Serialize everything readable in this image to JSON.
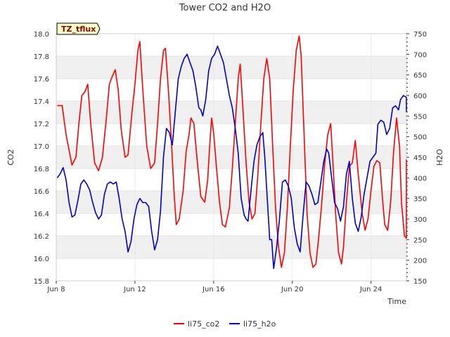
{
  "chart_data": {
    "type": "line",
    "title": "Tower CO2 and H2O",
    "site_tag": "TZ_tflux",
    "xlabel": "Time",
    "ylabel_left": "CO2",
    "ylabel_right": "H2O",
    "x_domain_days": [
      8.0,
      25.8
    ],
    "ylim_left": [
      15.8,
      18.0
    ],
    "ylim_right": [
      150,
      750
    ],
    "x_ticks": [
      {
        "day": 8,
        "label": "Jun 8"
      },
      {
        "day": 12,
        "label": "Jun 12"
      },
      {
        "day": 16,
        "label": "Jun 16"
      },
      {
        "day": 20,
        "label": "Jun 20"
      },
      {
        "day": 24,
        "label": "Jun 24"
      }
    ],
    "y_ticks_left": [
      "15.8",
      "16.0",
      "16.2",
      "16.4",
      "16.6",
      "16.8",
      "17.0",
      "17.2",
      "17.4",
      "17.6",
      "17.8",
      "18.0"
    ],
    "y_ticks_right": [
      "150",
      "200",
      "250",
      "300",
      "350",
      "400",
      "450",
      "500",
      "550",
      "600",
      "650",
      "700",
      "750"
    ],
    "grid": true,
    "legend_position": "bottom-center",
    "colors": {
      "li75_co2": "#ff0000",
      "li75_h2o": "#0000cc",
      "band": "#f0f0f0",
      "tag_bg": "#ffffcc"
    },
    "series": [
      {
        "name": "li75_co2",
        "axis": "left",
        "points": [
          [
            8.05,
            17.36
          ],
          [
            8.3,
            17.36
          ],
          [
            8.5,
            17.1
          ],
          [
            8.8,
            16.83
          ],
          [
            9.0,
            16.9
          ],
          [
            9.15,
            17.2
          ],
          [
            9.3,
            17.45
          ],
          [
            9.45,
            17.48
          ],
          [
            9.6,
            17.55
          ],
          [
            9.75,
            17.2
          ],
          [
            9.95,
            16.85
          ],
          [
            10.15,
            16.78
          ],
          [
            10.35,
            16.9
          ],
          [
            10.55,
            17.25
          ],
          [
            10.7,
            17.55
          ],
          [
            10.85,
            17.62
          ],
          [
            11.0,
            17.68
          ],
          [
            11.15,
            17.5
          ],
          [
            11.3,
            17.15
          ],
          [
            11.5,
            16.9
          ],
          [
            11.65,
            16.92
          ],
          [
            11.85,
            17.3
          ],
          [
            12.0,
            17.55
          ],
          [
            12.15,
            17.85
          ],
          [
            12.25,
            17.93
          ],
          [
            12.4,
            17.5
          ],
          [
            12.6,
            17.0
          ],
          [
            12.8,
            16.8
          ],
          [
            13.0,
            16.85
          ],
          [
            13.15,
            17.2
          ],
          [
            13.3,
            17.6
          ],
          [
            13.45,
            17.85
          ],
          [
            13.55,
            17.87
          ],
          [
            13.7,
            17.5
          ],
          [
            13.85,
            17.05
          ],
          [
            14.0,
            16.55
          ],
          [
            14.1,
            16.3
          ],
          [
            14.25,
            16.35
          ],
          [
            14.45,
            16.6
          ],
          [
            14.6,
            16.95
          ],
          [
            14.75,
            17.1
          ],
          [
            14.85,
            17.25
          ],
          [
            15.0,
            17.2
          ],
          [
            15.15,
            16.9
          ],
          [
            15.35,
            16.55
          ],
          [
            15.55,
            16.5
          ],
          [
            15.7,
            16.7
          ],
          [
            15.8,
            17.0
          ],
          [
            15.9,
            17.25
          ],
          [
            16.0,
            17.12
          ],
          [
            16.15,
            16.8
          ],
          [
            16.3,
            16.5
          ],
          [
            16.45,
            16.3
          ],
          [
            16.6,
            16.28
          ],
          [
            16.8,
            16.45
          ],
          [
            16.95,
            16.8
          ],
          [
            17.1,
            17.2
          ],
          [
            17.25,
            17.6
          ],
          [
            17.35,
            17.73
          ],
          [
            17.5,
            17.3
          ],
          [
            17.65,
            16.85
          ],
          [
            17.8,
            16.5
          ],
          [
            17.95,
            16.35
          ],
          [
            18.1,
            16.4
          ],
          [
            18.25,
            16.75
          ],
          [
            18.4,
            17.2
          ],
          [
            18.55,
            17.6
          ],
          [
            18.7,
            17.78
          ],
          [
            18.85,
            17.6
          ],
          [
            19.0,
            17.0
          ],
          [
            19.15,
            16.45
          ],
          [
            19.3,
            16.1
          ],
          [
            19.45,
            15.92
          ],
          [
            19.6,
            16.05
          ],
          [
            19.75,
            16.45
          ],
          [
            19.9,
            17.0
          ],
          [
            20.05,
            17.5
          ],
          [
            20.2,
            17.85
          ],
          [
            20.35,
            17.98
          ],
          [
            20.45,
            17.8
          ],
          [
            20.6,
            17.1
          ],
          [
            20.75,
            16.4
          ],
          [
            20.9,
            16.05
          ],
          [
            21.05,
            15.92
          ],
          [
            21.2,
            15.95
          ],
          [
            21.35,
            16.2
          ],
          [
            21.5,
            16.5
          ],
          [
            21.65,
            16.85
          ],
          [
            21.8,
            17.1
          ],
          [
            21.95,
            17.2
          ],
          [
            22.05,
            16.9
          ],
          [
            22.2,
            16.4
          ],
          [
            22.35,
            16.05
          ],
          [
            22.5,
            15.95
          ],
          [
            22.6,
            16.1
          ],
          [
            22.75,
            16.5
          ],
          [
            22.9,
            16.82
          ],
          [
            23.05,
            16.85
          ],
          [
            23.2,
            17.05
          ],
          [
            23.35,
            16.75
          ],
          [
            23.55,
            16.4
          ],
          [
            23.7,
            16.25
          ],
          [
            23.85,
            16.35
          ],
          [
            24.0,
            16.6
          ],
          [
            24.15,
            16.82
          ],
          [
            24.3,
            16.87
          ],
          [
            24.45,
            16.85
          ],
          [
            24.6,
            16.5
          ],
          [
            24.7,
            16.3
          ],
          [
            24.85,
            16.25
          ],
          [
            25.0,
            16.5
          ],
          [
            25.15,
            16.95
          ],
          [
            25.3,
            17.25
          ],
          [
            25.45,
            17.0
          ],
          [
            25.55,
            16.5
          ],
          [
            25.7,
            16.2
          ],
          [
            25.85,
            16.18
          ],
          [
            26.0,
            16.5
          ],
          [
            26.15,
            16.85
          ],
          [
            26.25,
            16.88
          ]
        ]
      },
      {
        "name": "li75_h2o",
        "axis": "right",
        "points": [
          [
            8.05,
            400
          ],
          [
            8.2,
            410
          ],
          [
            8.35,
            425
          ],
          [
            8.5,
            395
          ],
          [
            8.65,
            340
          ],
          [
            8.8,
            305
          ],
          [
            8.95,
            310
          ],
          [
            9.1,
            345
          ],
          [
            9.25,
            385
          ],
          [
            9.4,
            395
          ],
          [
            9.55,
            385
          ],
          [
            9.7,
            370
          ],
          [
            9.85,
            340
          ],
          [
            10.0,
            315
          ],
          [
            10.15,
            300
          ],
          [
            10.3,
            310
          ],
          [
            10.45,
            360
          ],
          [
            10.6,
            385
          ],
          [
            10.75,
            390
          ],
          [
            10.9,
            385
          ],
          [
            11.05,
            390
          ],
          [
            11.2,
            350
          ],
          [
            11.35,
            300
          ],
          [
            11.5,
            270
          ],
          [
            11.65,
            220
          ],
          [
            11.8,
            245
          ],
          [
            11.95,
            300
          ],
          [
            12.1,
            335
          ],
          [
            12.25,
            350
          ],
          [
            12.4,
            340
          ],
          [
            12.55,
            340
          ],
          [
            12.7,
            330
          ],
          [
            12.85,
            270
          ],
          [
            13.0,
            225
          ],
          [
            13.15,
            250
          ],
          [
            13.3,
            320
          ],
          [
            13.45,
            450
          ],
          [
            13.6,
            520
          ],
          [
            13.75,
            510
          ],
          [
            13.9,
            480
          ],
          [
            14.05,
            560
          ],
          [
            14.2,
            640
          ],
          [
            14.35,
            670
          ],
          [
            14.5,
            690
          ],
          [
            14.65,
            700
          ],
          [
            14.8,
            680
          ],
          [
            14.95,
            660
          ],
          [
            15.1,
            620
          ],
          [
            15.25,
            570
          ],
          [
            15.35,
            565
          ],
          [
            15.45,
            550
          ],
          [
            15.6,
            590
          ],
          [
            15.75,
            660
          ],
          [
            15.9,
            690
          ],
          [
            16.05,
            700
          ],
          [
            16.2,
            720
          ],
          [
            16.35,
            700
          ],
          [
            16.5,
            680
          ],
          [
            16.65,
            640
          ],
          [
            16.8,
            600
          ],
          [
            16.95,
            570
          ],
          [
            17.1,
            520
          ],
          [
            17.25,
            460
          ],
          [
            17.4,
            350
          ],
          [
            17.55,
            310
          ],
          [
            17.65,
            300
          ],
          [
            17.75,
            295
          ],
          [
            17.9,
            370
          ],
          [
            18.05,
            440
          ],
          [
            18.2,
            480
          ],
          [
            18.35,
            500
          ],
          [
            18.5,
            510
          ],
          [
            18.6,
            450
          ],
          [
            18.75,
            330
          ],
          [
            18.85,
            250
          ],
          [
            18.95,
            250
          ],
          [
            19.05,
            180
          ],
          [
            19.2,
            230
          ],
          [
            19.35,
            300
          ],
          [
            19.5,
            390
          ],
          [
            19.65,
            395
          ],
          [
            19.8,
            380
          ],
          [
            19.95,
            350
          ],
          [
            20.1,
            280
          ],
          [
            20.25,
            240
          ],
          [
            20.4,
            220
          ],
          [
            20.55,
            310
          ],
          [
            20.7,
            390
          ],
          [
            20.85,
            380
          ],
          [
            21.0,
            360
          ],
          [
            21.15,
            335
          ],
          [
            21.3,
            340
          ],
          [
            21.45,
            390
          ],
          [
            21.6,
            440
          ],
          [
            21.75,
            470
          ],
          [
            21.85,
            460
          ],
          [
            22.0,
            400
          ],
          [
            22.15,
            340
          ],
          [
            22.3,
            325
          ],
          [
            22.45,
            295
          ],
          [
            22.6,
            330
          ],
          [
            22.75,
            410
          ],
          [
            22.9,
            440
          ],
          [
            23.05,
            350
          ],
          [
            23.2,
            290
          ],
          [
            23.35,
            270
          ],
          [
            23.5,
            305
          ],
          [
            23.65,
            360
          ],
          [
            23.8,
            400
          ],
          [
            23.95,
            440
          ],
          [
            24.1,
            450
          ],
          [
            24.25,
            460
          ],
          [
            24.35,
            530
          ],
          [
            24.5,
            540
          ],
          [
            24.65,
            535
          ],
          [
            24.8,
            505
          ],
          [
            24.95,
            520
          ],
          [
            25.1,
            570
          ],
          [
            25.25,
            575
          ],
          [
            25.4,
            565
          ],
          [
            25.5,
            590
          ],
          [
            25.65,
            600
          ],
          [
            25.8,
            595
          ],
          [
            25.95,
            595
          ],
          [
            26.1,
            580
          ],
          [
            26.25,
            560
          ]
        ]
      }
    ]
  }
}
